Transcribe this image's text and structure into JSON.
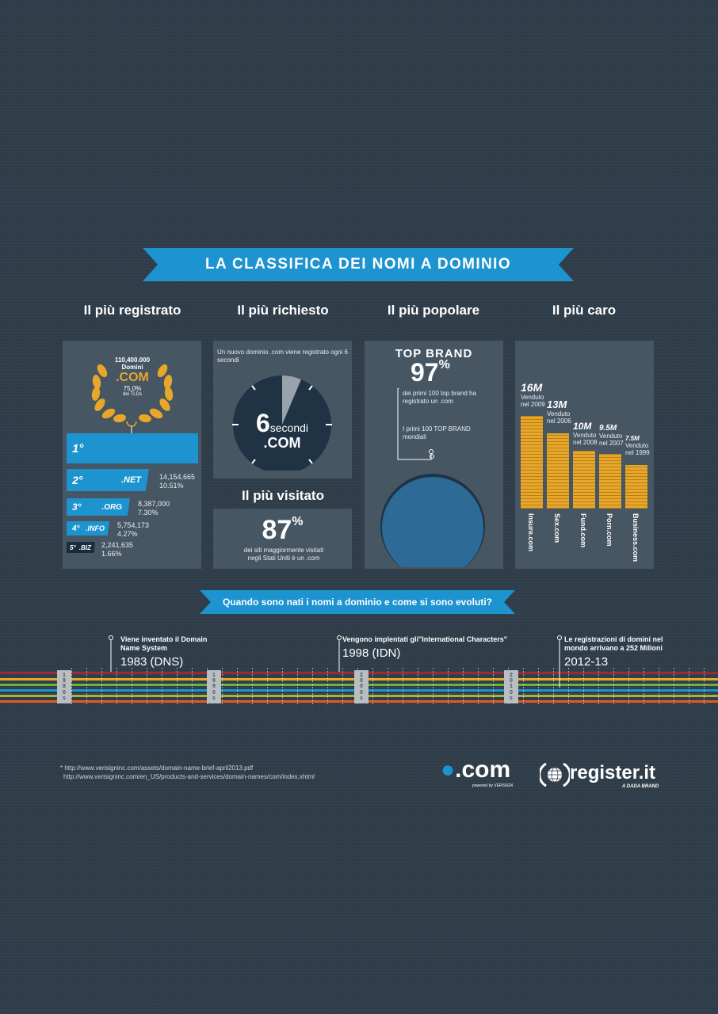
{
  "banner_title": "LA CLASSIFICA DEI NOMI A DOMINIO",
  "columns": {
    "registered": "Il più registrato",
    "requested": "Il più richiesto",
    "popular": "Il più popolare",
    "expensive": "Il più caro",
    "visited": "Il più visitato"
  },
  "registered": {
    "laurel_count": "110,400.000",
    "laurel_label": "Domini",
    "laurel_ext": ".COM",
    "laurel_pct": "75,0%",
    "laurel_sub": "dei TLDs",
    "ranks": [
      {
        "pos": "1°",
        "ext": "",
        "count": "",
        "pct": "",
        "share": 75.0
      },
      {
        "pos": "2°",
        "ext": ".NET",
        "count": "14,154,665",
        "pct": "10.51%",
        "share": 10.51
      },
      {
        "pos": "3°",
        "ext": ".ORG",
        "count": "8,387,000",
        "pct": "7.30%",
        "share": 7.3
      },
      {
        "pos": "4°",
        "ext": ".INFO",
        "count": "5,754,173",
        "pct": "4.27%",
        "share": 4.27
      },
      {
        "pos": "5°",
        "ext": ".BIZ",
        "count": "2,241,635",
        "pct": "1.66%",
        "share": 1.66
      }
    ]
  },
  "requested": {
    "caption": "Un nuovo dominio .com viene registrato ogni 6 secondi",
    "number": "6",
    "unit": "secondi",
    "ext": ".COM"
  },
  "visited": {
    "value": "87",
    "pct_sign": "%",
    "caption": "dei siti maggiormente visitati negli Stati Uniti è un .com"
  },
  "popular": {
    "heading": "TOP BRAND",
    "value": "97",
    "pct_sign": "%",
    "caption": "dei primi 100 top brand ha registrato un .com",
    "note": "I primi 100 TOP BRAND mondiali"
  },
  "expensive": {
    "sold_label": "Venduto",
    "items": [
      {
        "price": "16M",
        "year": "nel 2009",
        "domain": "Insure.com",
        "value": 16
      },
      {
        "price": "13M",
        "year": "nel 2006",
        "domain": "Sex.com",
        "value": 13
      },
      {
        "price": "10M",
        "year": "nel 2008",
        "domain": "Fund.com",
        "value": 10
      },
      {
        "price": "9.5M",
        "year": "nel 2007",
        "domain": "Porn.com",
        "value": 9.5
      },
      {
        "price": "7.5M",
        "year": "nel 1999",
        "domain": "Business.com",
        "value": 7.5
      }
    ]
  },
  "timeline": {
    "question": "Quando sono nati i nomi a dominio e come si sono evoluti?",
    "eras": [
      {
        "label": [
          "1",
          "9",
          "8",
          "0",
          "s"
        ]
      },
      {
        "label": [
          "1",
          "9",
          "9",
          "0",
          "s"
        ]
      },
      {
        "label": [
          "2",
          "0",
          "0",
          "0",
          "s"
        ]
      },
      {
        "label": [
          "2",
          "0",
          "1",
          "0",
          "s"
        ]
      }
    ],
    "events": [
      {
        "title": "Viene inventato il Domain Name System",
        "year": "1983 (DNS)"
      },
      {
        "title": "Vengono implentati gli\"International Characters\"",
        "year": "1998 (IDN)"
      },
      {
        "title": "Le registrazioni di domini nel mondo arrivano a 252 Milioni",
        "year": "2012-13"
      }
    ]
  },
  "footnote": {
    "line1": "* http://www.verisigninc.com/assets/domain-name-brief-april2013.pdf",
    "line2": "http://www.verisigninc.com/en_US/products-and-services/domain-names/com/index.xhtml"
  },
  "logos": {
    "com_text": ".com",
    "com_powered": "powered by VERISIGN",
    "register_text": "register.it",
    "register_sub": "A DADA BRAND"
  },
  "colors": {
    "accent": "#1d93cf",
    "gold": "#e8a62a",
    "panel": "#465663",
    "background": "#2f3e4a"
  }
}
